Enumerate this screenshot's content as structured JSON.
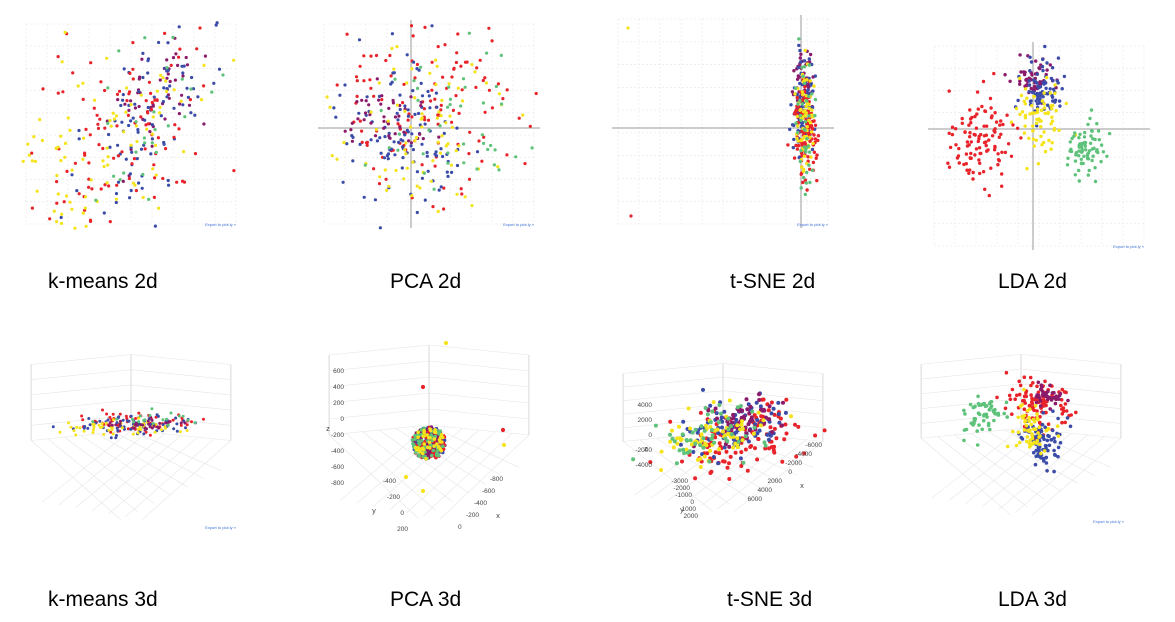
{
  "colors": {
    "red": "#e8232a",
    "blue": "#3b4ba8",
    "yellow": "#f5e31b",
    "green": "#5ec27a",
    "purple": "#8b1a6b",
    "grid": "#e6e6e6",
    "axis": "#9a9a9a",
    "link": "#3a6fd6"
  },
  "export_link": "Export to plot.ly »",
  "chart_data": [
    {
      "id": "kmeans2d",
      "type": "scatter",
      "caption": "k-means 2d",
      "series_colors": [
        "red",
        "yellow",
        "blue",
        "purple",
        "green"
      ],
      "clusters": [
        {
          "color": "purple",
          "center": [
            0.62,
            0.38
          ],
          "spread": [
            0.09,
            0.15
          ],
          "n": 50,
          "tilt": -0.9
        },
        {
          "color": "blue",
          "center": [
            0.58,
            0.45
          ],
          "spread": [
            0.14,
            0.2
          ],
          "n": 90,
          "tilt": -0.9
        },
        {
          "color": "red",
          "center": [
            0.45,
            0.55
          ],
          "spread": [
            0.22,
            0.25
          ],
          "n": 110,
          "tilt": -0.8
        },
        {
          "color": "yellow",
          "center": [
            0.35,
            0.65
          ],
          "spread": [
            0.22,
            0.22
          ],
          "n": 100,
          "tilt": -0.8
        },
        {
          "color": "green",
          "center": [
            0.55,
            0.5
          ],
          "spread": [
            0.18,
            0.2
          ],
          "n": 25,
          "tilt": -0.8
        }
      ]
    },
    {
      "id": "pca2d",
      "type": "scatter",
      "caption": "PCA 2d",
      "clusters": [
        {
          "color": "red",
          "center": [
            0.45,
            0.38
          ],
          "spread": [
            0.22,
            0.2
          ],
          "n": 130,
          "tilt": 0
        },
        {
          "color": "blue",
          "center": [
            0.38,
            0.52
          ],
          "spread": [
            0.15,
            0.22
          ],
          "n": 120,
          "tilt": 0
        },
        {
          "color": "purple",
          "center": [
            0.3,
            0.47
          ],
          "spread": [
            0.1,
            0.08
          ],
          "n": 45,
          "tilt": 0
        },
        {
          "color": "yellow",
          "center": [
            0.45,
            0.52
          ],
          "spread": [
            0.2,
            0.2
          ],
          "n": 80,
          "tilt": 0
        },
        {
          "color": "green",
          "center": [
            0.55,
            0.5
          ],
          "spread": [
            0.2,
            0.22
          ],
          "n": 45,
          "tilt": 0
        }
      ]
    },
    {
      "id": "tsne2d",
      "type": "scatter",
      "caption": "t-SNE 2d",
      "clusters": [
        {
          "color": "purple",
          "center": [
            0.86,
            0.32
          ],
          "spread": [
            0.02,
            0.08
          ],
          "n": 50,
          "tilt": 0
        },
        {
          "color": "blue",
          "center": [
            0.86,
            0.45
          ],
          "spread": [
            0.025,
            0.13
          ],
          "n": 90,
          "tilt": 0
        },
        {
          "color": "red",
          "center": [
            0.87,
            0.55
          ],
          "spread": [
            0.025,
            0.12
          ],
          "n": 110,
          "tilt": 0
        },
        {
          "color": "yellow",
          "center": [
            0.87,
            0.5
          ],
          "spread": [
            0.02,
            0.12
          ],
          "n": 70,
          "tilt": 0
        },
        {
          "color": "green",
          "center": [
            0.87,
            0.52
          ],
          "spread": [
            0.02,
            0.14
          ],
          "n": 40,
          "tilt": 0
        }
      ]
    },
    {
      "id": "lda2d",
      "type": "scatter",
      "caption": "LDA 2d",
      "clusters": [
        {
          "color": "purple",
          "center": [
            0.48,
            0.18
          ],
          "spread": [
            0.05,
            0.05
          ],
          "n": 55,
          "tilt": 0
        },
        {
          "color": "blue",
          "center": [
            0.52,
            0.22
          ],
          "spread": [
            0.05,
            0.07
          ],
          "n": 80,
          "tilt": 0
        },
        {
          "color": "yellow",
          "center": [
            0.5,
            0.35
          ],
          "spread": [
            0.06,
            0.1
          ],
          "n": 70,
          "tilt": 0
        },
        {
          "color": "red",
          "center": [
            0.25,
            0.45
          ],
          "spread": [
            0.08,
            0.1
          ],
          "n": 110,
          "tilt": 0
        },
        {
          "color": "green",
          "center": [
            0.72,
            0.5
          ],
          "spread": [
            0.05,
            0.07
          ],
          "n": 75,
          "tilt": 0
        }
      ]
    },
    {
      "id": "kmeans3d",
      "type": "scatter3d",
      "caption": "k-means 3d",
      "clusters": [
        {
          "color": "red",
          "center": [
            0.52,
            0.4
          ],
          "spread": [
            0.14,
            0.03
          ],
          "n": 60,
          "tilt": -0.15
        },
        {
          "color": "blue",
          "center": [
            0.5,
            0.42
          ],
          "spread": [
            0.12,
            0.025
          ],
          "n": 70,
          "tilt": -0.15
        },
        {
          "color": "yellow",
          "center": [
            0.42,
            0.43
          ],
          "spread": [
            0.12,
            0.02
          ],
          "n": 50,
          "tilt": -0.15
        },
        {
          "color": "purple",
          "center": [
            0.55,
            0.41
          ],
          "spread": [
            0.1,
            0.02
          ],
          "n": 30,
          "tilt": -0.15
        },
        {
          "color": "green",
          "center": [
            0.6,
            0.39
          ],
          "spread": [
            0.12,
            0.02
          ],
          "n": 20,
          "tilt": -0.15
        }
      ]
    },
    {
      "id": "pca3d",
      "type": "scatter3d",
      "caption": "PCA 3d",
      "x_ticks": [
        "-800",
        "-600",
        "-400",
        "-200",
        "0"
      ],
      "y_ticks": [
        "-400",
        "-200",
        "0",
        "200"
      ],
      "z_ticks": [
        "600",
        "400",
        "200",
        "0",
        "-200",
        "-400",
        "-600",
        "-800"
      ],
      "axis_labels": {
        "x": "x",
        "y": "y",
        "z": "z"
      },
      "clusters": [
        {
          "color": "blue",
          "center": [
            0.5,
            0.52
          ],
          "spread": [
            0.05,
            0.05
          ],
          "n": 120,
          "tilt": 0
        },
        {
          "color": "red",
          "center": [
            0.5,
            0.52
          ],
          "spread": [
            0.05,
            0.05
          ],
          "n": 80,
          "tilt": 0
        },
        {
          "color": "purple",
          "center": [
            0.5,
            0.52
          ],
          "spread": [
            0.04,
            0.04
          ],
          "n": 50,
          "tilt": 0
        },
        {
          "color": "green",
          "center": [
            0.5,
            0.52
          ],
          "spread": [
            0.05,
            0.05
          ],
          "n": 60,
          "tilt": 0
        },
        {
          "color": "yellow",
          "center": [
            0.5,
            0.52
          ],
          "spread": [
            0.05,
            0.05
          ],
          "n": 40,
          "tilt": 0
        }
      ]
    },
    {
      "id": "tsne3d",
      "type": "scatter3d",
      "caption": "t-SNE 3d",
      "x_ticks": [
        "-6000",
        "-4000",
        "-2000",
        "0",
        "2000",
        "4000",
        "6000"
      ],
      "y_ticks": [
        "-3000",
        "-2000",
        "-1000",
        "0",
        "1000",
        "2000"
      ],
      "z_ticks": [
        "4000",
        "2000",
        "0",
        "-2000",
        "-4000"
      ],
      "axis_labels": {
        "x": "x",
        "y": "y",
        "z": "z"
      },
      "clusters": [
        {
          "color": "red",
          "center": [
            0.58,
            0.48
          ],
          "spread": [
            0.13,
            0.1
          ],
          "n": 120,
          "tilt": -0.5
        },
        {
          "color": "blue",
          "center": [
            0.55,
            0.42
          ],
          "spread": [
            0.12,
            0.08
          ],
          "n": 90,
          "tilt": -0.5
        },
        {
          "color": "purple",
          "center": [
            0.58,
            0.4
          ],
          "spread": [
            0.1,
            0.07
          ],
          "n": 60,
          "tilt": -0.5
        },
        {
          "color": "yellow",
          "center": [
            0.45,
            0.48
          ],
          "spread": [
            0.12,
            0.08
          ],
          "n": 70,
          "tilt": -0.5
        },
        {
          "color": "green",
          "center": [
            0.45,
            0.45
          ],
          "spread": [
            0.12,
            0.08
          ],
          "n": 50,
          "tilt": -0.5
        }
      ]
    },
    {
      "id": "lda3d",
      "type": "scatter3d",
      "caption": "LDA 3d",
      "clusters": [
        {
          "color": "red",
          "center": [
            0.58,
            0.32
          ],
          "spread": [
            0.07,
            0.07
          ],
          "n": 110,
          "tilt": 0
        },
        {
          "color": "purple",
          "center": [
            0.62,
            0.28
          ],
          "spread": [
            0.04,
            0.03
          ],
          "n": 40,
          "tilt": 0
        },
        {
          "color": "blue",
          "center": [
            0.6,
            0.52
          ],
          "spread": [
            0.05,
            0.07
          ],
          "n": 80,
          "tilt": 0
        },
        {
          "color": "yellow",
          "center": [
            0.55,
            0.45
          ],
          "spread": [
            0.05,
            0.07
          ],
          "n": 60,
          "tilt": 0
        },
        {
          "color": "green",
          "center": [
            0.32,
            0.38
          ],
          "spread": [
            0.05,
            0.05
          ],
          "n": 55,
          "tilt": 0
        }
      ]
    }
  ]
}
